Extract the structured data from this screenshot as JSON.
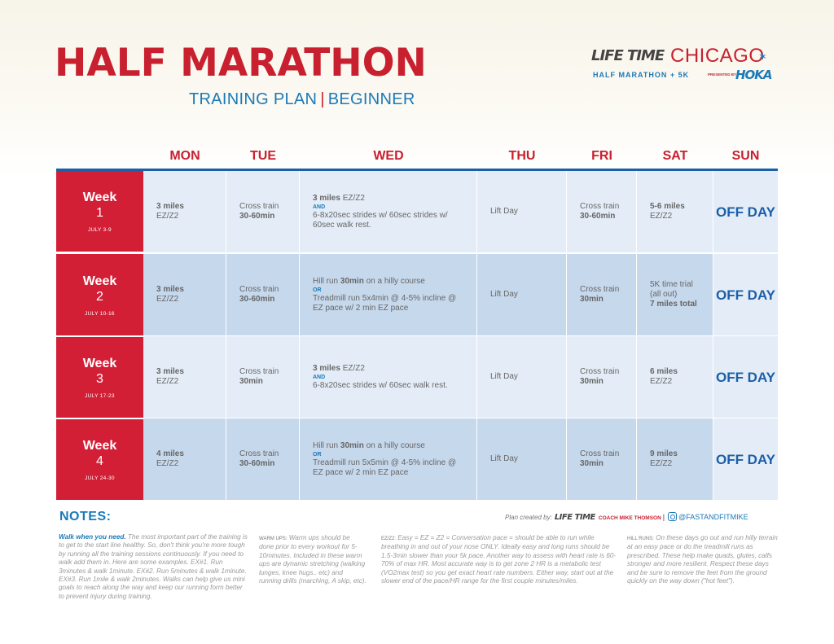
{
  "header": {
    "title": "HALF MARATHON",
    "subtitle_left": "TRAINING PLAN",
    "subtitle_sep": "|",
    "subtitle_right": "BEGINNER"
  },
  "logo": {
    "brand": "LIFE TIME",
    "city": "CHICAGO",
    "event": "HALF MARATHON + 5K",
    "presented_by": "PRESENTED BY",
    "sponsor": "HOKA"
  },
  "days": [
    "MON",
    "TUE",
    "WED",
    "THU",
    "FRI",
    "SAT",
    "SUN"
  ],
  "weeks": [
    {
      "label": "Week",
      "number": "1",
      "dates": "JULY 3-9",
      "mon": {
        "b": "3 miles",
        "t": "EZ/Z2"
      },
      "tue": {
        "t": "Cross train",
        "b": "30-60min"
      },
      "wed": {
        "b": "3 miles",
        "t1": " EZ/Z2",
        "and": "AND",
        "t2": "6-8x20sec strides w/ 60sec strides w/ 60sec walk rest."
      },
      "thu": "Lift Day",
      "fri": {
        "t": "Cross train",
        "b": "30-60min"
      },
      "sat": {
        "b": "5-6 miles",
        "t": "EZ/Z2"
      },
      "sun": "OFF DAY"
    },
    {
      "label": "Week",
      "number": "2",
      "dates": "JULY 10-16",
      "mon": {
        "b": "3 miles",
        "t": "EZ/Z2"
      },
      "tue": {
        "t": "Cross train",
        "b": "30-60min"
      },
      "wed": {
        "t1": "Hill run ",
        "b": "30min",
        "t1b": " on a hilly course",
        "and": "OR",
        "t2": "Treadmill run 5x4min @ 4-5% incline @ EZ pace w/ 2 min EZ pace"
      },
      "thu": "Lift Day",
      "fri": {
        "t": "Cross train",
        "b": "30min"
      },
      "sat": {
        "t": "5K time trial",
        "t2": "(all out)",
        "b": "7 miles total"
      },
      "sun": "OFF DAY"
    },
    {
      "label": "Week",
      "number": "3",
      "dates": "JULY 17-23",
      "mon": {
        "b": "3 miles",
        "t": "EZ/Z2"
      },
      "tue": {
        "t": "Cross train",
        "b": "30min"
      },
      "wed": {
        "b": "3 miles",
        "t1": " EZ/Z2",
        "and": "AND",
        "t2": "6-8x20sec strides w/ 60sec walk rest."
      },
      "thu": "Lift Day",
      "fri": {
        "t": "Cross train",
        "b": "30min"
      },
      "sat": {
        "b": "6 miles",
        "t": "EZ/Z2"
      },
      "sun": "OFF DAY"
    },
    {
      "label": "Week",
      "number": "4",
      "dates": "JULY 24-30",
      "mon": {
        "b": "4 miles",
        "t": "EZ/Z2"
      },
      "tue": {
        "t": "Cross train",
        "b": "30-60min"
      },
      "wed": {
        "t1": "Hill run ",
        "b": "30min",
        "t1b": " on a hilly course",
        "and": "OR",
        "t2": "Treadmill run 5x5min @ 4-5% incline @ EZ pace w/ 2 min EZ pace"
      },
      "thu": "Lift Day",
      "fri": {
        "t": "Cross train",
        "b": "30min"
      },
      "sat": {
        "b": "9 miles",
        "t": "EZ/Z2"
      },
      "sun": "OFF DAY"
    }
  ],
  "notes": {
    "heading": "NOTES:",
    "credit_prefix": "Plan created by:",
    "credit_brand": "LIFE TIME",
    "credit_coach": "COACH MIKE THOMSON",
    "credit_sep": "|",
    "credit_handle": "@FASTANDFITMIKE",
    "walk_label": "Walk when you need.",
    "walk_text": " The most important part of the training is to get to the start line healthy. So, don't think you're more tough by running all the training sessions continuously. If you need to walk add them in. Here are some examples. EX#1. Run 3minutes & walk 1minute. EX#2. Run 5minutes & walk 1minute. EX#3. Run 1mile & walk 2minutes. Walks can help give us mini goals to reach along the way and keep our running form better to prevent injury during training.",
    "warmup_label": "WARM UPS:",
    "warmup_text": " Warm ups should be done prior to every workout for 5-10minutes. Included in these warm ups are dynamic stretching (walking lunges, knee hugs.. etc) and running drills (marching, A skip, etc).",
    "ez_label": "EZ/Z2:",
    "ez_text": " Easy = EZ = Z2 = Conversation pace = should be able to run while breathing in and out of your nose ONLY. Ideally easy and long runs should be 1.5-3min slower than your 5k pace.  Another way to assess with heart rate is 60-70% of max HR. Most accurate way is to get zone 2 HR is a metabolic test (VO2max test) so you get exact heart rate numbers. Either way, start out at the slower end of the pace/HR range for the first couple minutes/miles.",
    "hill_label": "HILL RUNS:",
    "hill_text": " On these days go out and run hilly terrain at an easy pace or do the treadmill runs as prescribed. These help make quads, glutes, calfs stronger and more resilient. Respect these days and be sure to remove the feet from the ground quickly on the way down (\"hot feet\")."
  },
  "colors": {
    "red": "#c8202f",
    "blue": "#1b7ab8",
    "navy": "#1b5fa8",
    "week_red": "#d31f36",
    "light_cell": "#e4edf7",
    "mid_cell": "#c6d8ec"
  }
}
